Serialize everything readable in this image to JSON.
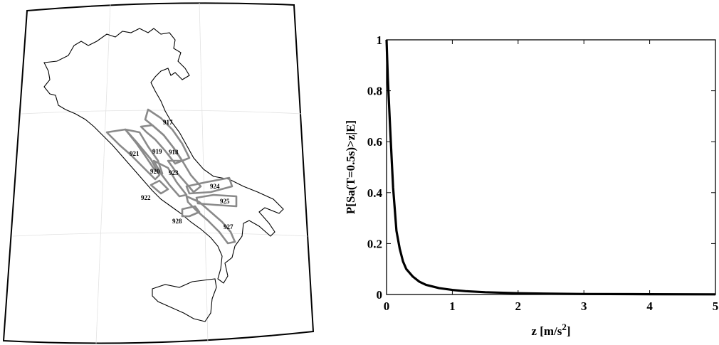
{
  "map": {
    "zones": [
      "917",
      "918",
      "919",
      "920",
      "921",
      "922",
      "923",
      "924",
      "925",
      "927",
      "928"
    ]
  },
  "chart_data": {
    "type": "line",
    "xlabel": "z [m/s",
    "xlabel_sup": "2",
    "xlabel_close": "]",
    "ylabel": "P[Sa(T=0.5s)>z|E]",
    "xlim": [
      0,
      5
    ],
    "ylim": [
      0,
      1
    ],
    "xticks": [
      "0",
      "1",
      "2",
      "3",
      "4",
      "5"
    ],
    "yticks": [
      "0",
      "0.2",
      "0.4",
      "0.6",
      "0.8",
      "1"
    ],
    "grid": false,
    "series": [
      {
        "color": "#000000",
        "x": [
          0,
          0.02,
          0.05,
          0.08,
          0.1,
          0.15,
          0.2,
          0.25,
          0.3,
          0.4,
          0.5,
          0.6,
          0.8,
          1.0,
          1.2,
          1.5,
          2.0,
          2.5,
          3.0,
          4.0,
          5.0
        ],
        "y": [
          1.0,
          0.85,
          0.68,
          0.52,
          0.42,
          0.25,
          0.18,
          0.13,
          0.1,
          0.07,
          0.05,
          0.038,
          0.025,
          0.018,
          0.013,
          0.009,
          0.005,
          0.003,
          0.002,
          0.001,
          0.0005
        ]
      }
    ]
  }
}
